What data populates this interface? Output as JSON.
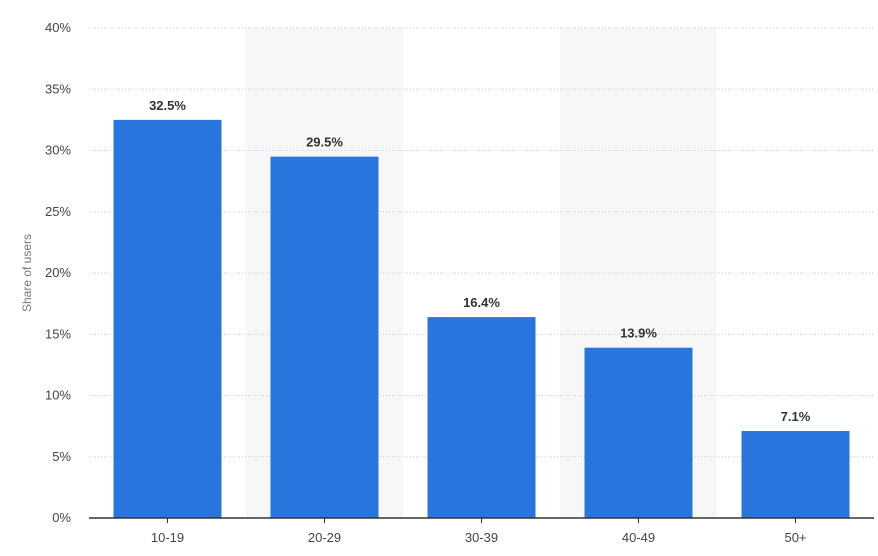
{
  "chart_data": {
    "type": "bar",
    "categories": [
      "10-19",
      "20-29",
      "30-39",
      "40-49",
      "50+"
    ],
    "values": [
      32.5,
      29.5,
      16.4,
      13.9,
      7.1
    ],
    "data_labels": [
      "32.5%",
      "29.5%",
      "16.4%",
      "13.9%",
      "7.1%"
    ],
    "title": "",
    "xlabel": "",
    "ylabel": "Share of users",
    "ylim": [
      0,
      40
    ],
    "yticks": [
      0,
      5,
      10,
      15,
      20,
      25,
      30,
      35,
      40
    ],
    "ytick_labels": [
      "0%",
      "5%",
      "10%",
      "15%",
      "20%",
      "25%",
      "30%",
      "35%",
      "40%"
    ],
    "grid": true,
    "legend": "none",
    "colors": {
      "bar": "#2876dd",
      "band": "#f7f7f7",
      "grid": "#c8c8c8",
      "axis": "#333333"
    }
  }
}
